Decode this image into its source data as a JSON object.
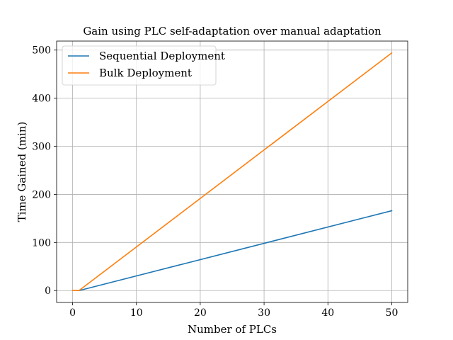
{
  "chart_data": {
    "type": "line",
    "title": "Gain using PLC self-adaptation over manual adaptation",
    "xlabel": "Number of PLCs",
    "ylabel": "Time Gained (min)",
    "xlim": [
      -2.5,
      52.5
    ],
    "ylim": [
      -24.7,
      518.7
    ],
    "xticks": [
      0,
      10,
      20,
      30,
      40,
      50
    ],
    "yticks": [
      0,
      100,
      200,
      300,
      400,
      500
    ],
    "grid": true,
    "legend_position": "top-left",
    "series": [
      {
        "name": "Sequential Deployment",
        "color": "#1f77b4",
        "x": [
          0,
          1,
          50
        ],
        "y": [
          0,
          0,
          166
        ]
      },
      {
        "name": "Bulk Deployment",
        "color": "#ff7f0e",
        "x": [
          0,
          1,
          50
        ],
        "y": [
          0,
          0,
          494
        ]
      }
    ]
  }
}
